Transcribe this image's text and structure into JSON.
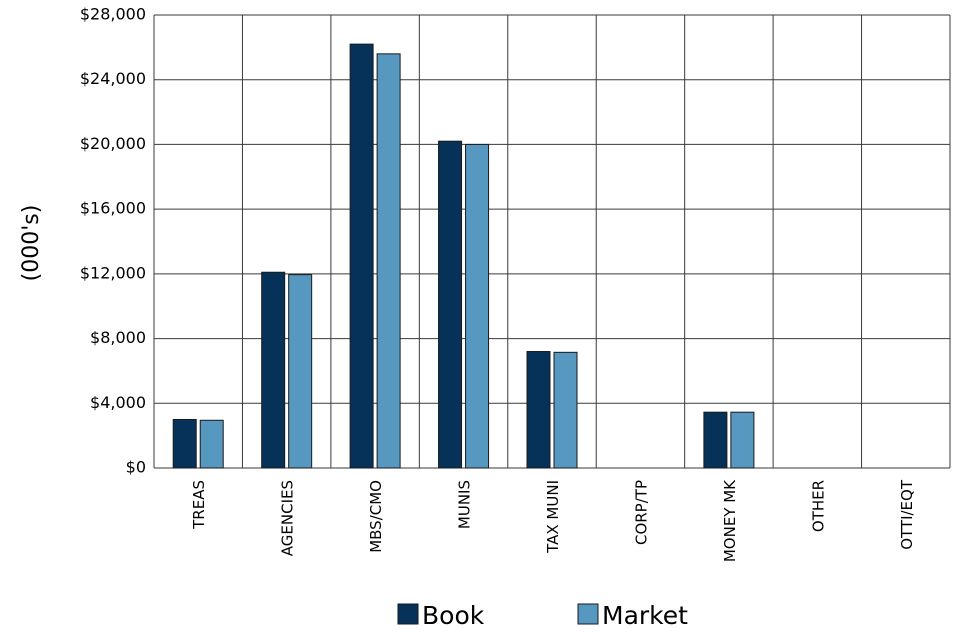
{
  "chart_data": {
    "type": "bar",
    "title": "",
    "xlabel": "",
    "ylabel": "(000's)",
    "ylim": [
      0,
      28000
    ],
    "yticks": [
      0,
      4000,
      8000,
      12000,
      16000,
      20000,
      24000,
      28000
    ],
    "ytick_labels": [
      "$0",
      "$4,000",
      "$8,000",
      "$12,000",
      "$16,000",
      "$20,000",
      "$24,000",
      "$28,000"
    ],
    "grid": true,
    "legend_position": "bottom",
    "categories": [
      "TREAS",
      "AGENCIES",
      "MBS/CMO",
      "MUNIS",
      "TAX MUNI",
      "CORP/TP",
      "MONEY MK",
      "OTHER",
      "OTTI/EQT"
    ],
    "series": [
      {
        "name": "Book",
        "color": "#06325a",
        "values": [
          3000,
          12100,
          26200,
          20200,
          7200,
          0,
          3450,
          0,
          0
        ]
      },
      {
        "name": "Market",
        "color": "#5798c0",
        "values": [
          2950,
          11950,
          25600,
          20000,
          7150,
          0,
          3450,
          0,
          0
        ]
      }
    ]
  }
}
